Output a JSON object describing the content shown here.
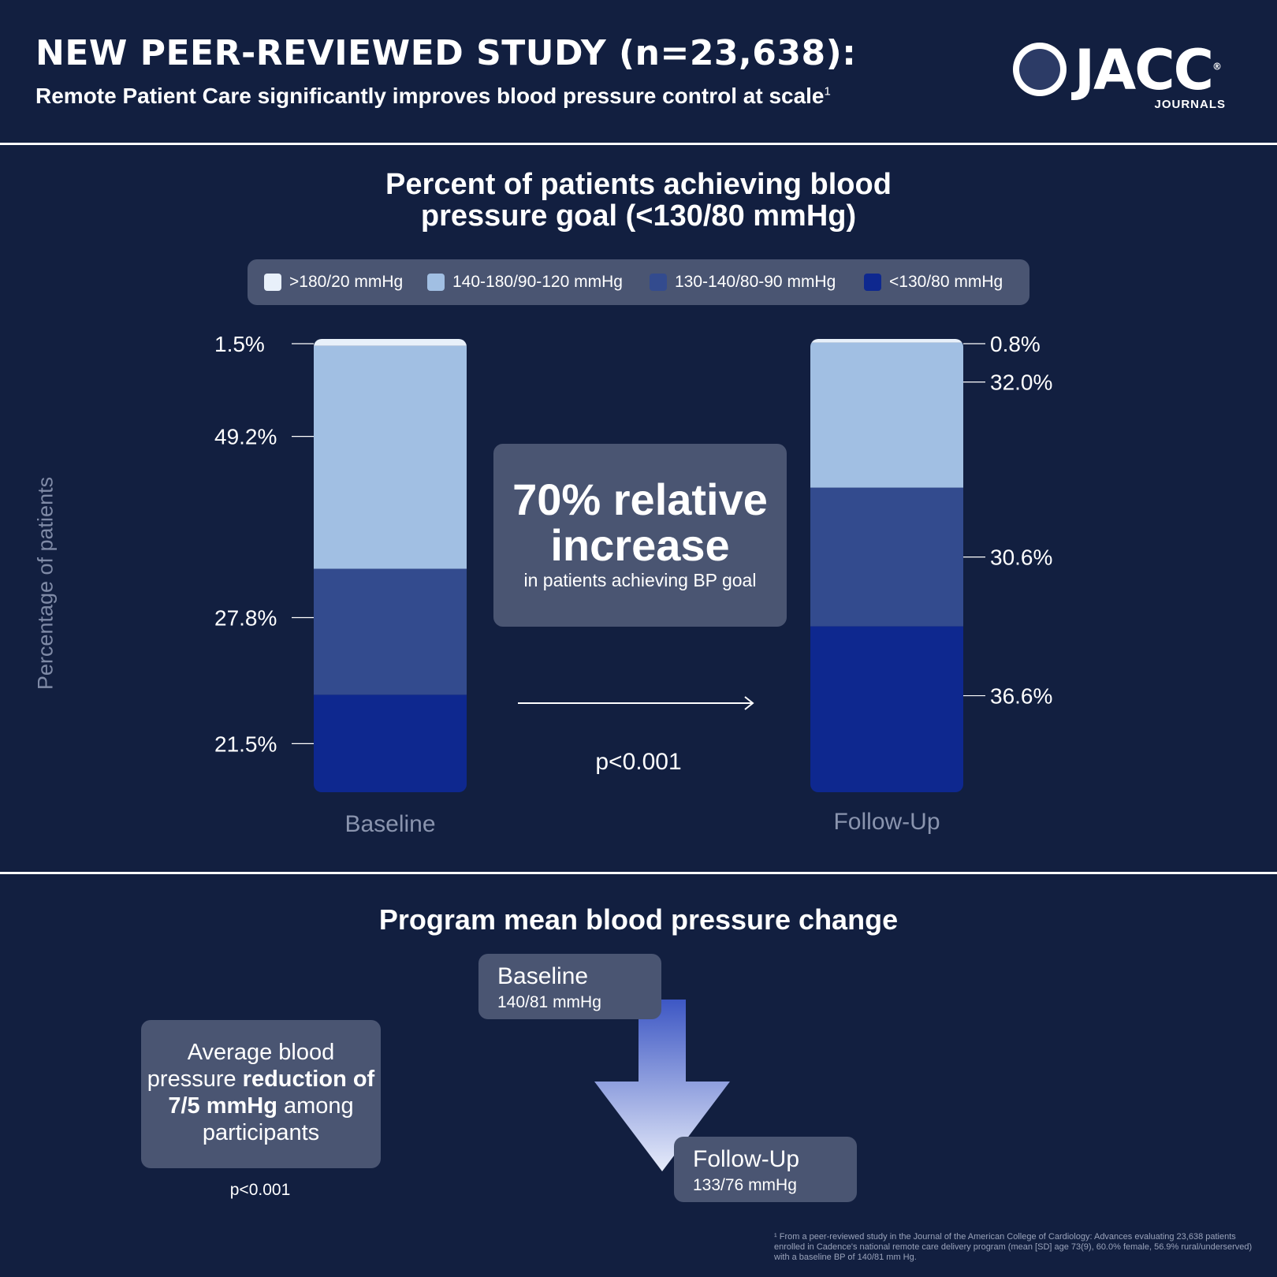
{
  "header": {
    "title": "NEW PEER-REVIEWED STUDY (n=23,638):",
    "subtitle": "Remote Patient Care significantly improves blood pressure control at scale",
    "subtitle_sup": "1"
  },
  "logo": {
    "word": "JACC",
    "sub": "JOURNALS",
    "registered": "®"
  },
  "chart_data": {
    "type": "bar",
    "stacked": true,
    "title": "Percent of patients achieving blood pressure goal (<130/80 mmHg)",
    "title_line1": "Percent of patients achieving blood",
    "title_line2": "pressure goal (<130/80 mmHg)",
    "ylabel": "Percentage of patients",
    "xlabel": "",
    "categories": [
      "Baseline",
      "Follow-Up"
    ],
    "legend_position": "top",
    "series": [
      {
        "name": "<130/80 mmHg",
        "color": "#0e288f",
        "values": [
          21.5,
          36.6
        ],
        "labels": [
          "21.5%",
          "36.6%"
        ]
      },
      {
        "name": "130-140/80-90 mmHg",
        "color": "#334b8e",
        "values": [
          27.8,
          30.6
        ],
        "labels": [
          "27.8%",
          "30.6%"
        ]
      },
      {
        "name": "140-180/90-120 mmHg",
        "color": "#a1bfe3",
        "values": [
          49.2,
          32.0
        ],
        "labels": [
          "49.2%",
          "32.0%"
        ]
      },
      {
        "name": ">180/20 mmHg",
        "color": "#e8f0fa",
        "values": [
          1.5,
          0.8
        ],
        "labels": [
          "1.5%",
          "0.8%"
        ]
      }
    ],
    "ylim": [
      0,
      100
    ],
    "grid": false
  },
  "legend": {
    "items": [
      {
        "label": ">180/20 mmHg",
        "color": "#e8f0fa"
      },
      {
        "label": "140-180/90-120 mmHg",
        "color": "#a1bfe3"
      },
      {
        "label": "130-140/80-90 mmHg",
        "color": "#334b8e"
      },
      {
        "label": "<130/80 mmHg",
        "color": "#0e288f"
      }
    ]
  },
  "callout": {
    "big_line1": "70% relative",
    "big_line2": "increase",
    "small": "in patients achieving BP goal",
    "pvalue": "p<0.001"
  },
  "section2": {
    "title": "Program mean blood pressure change",
    "avg_pre": "Average blood pressure ",
    "avg_bold": "reduction of 7/5 mmHg",
    "avg_post": " among participants",
    "pvalue": "p<0.001",
    "baseline_label": "Baseline",
    "baseline_value": "140/81 mmHg",
    "followup_label": "Follow-Up",
    "followup_value": "133/76 mmHg"
  },
  "footnote": "¹ From a peer-reviewed study in the Journal of the American College of Cardiology: Advances evaluating 23,638 patients enrolled in Cadence's national remote care delivery program (mean [SD] age 73(9), 60.0% female, 56.9% rural/underserved) with a baseline BP of 140/81 mm Hg.",
  "colors": {
    "background": "#121f40",
    "panel": "#4a5572",
    "axis_text": "#8a94ae"
  }
}
